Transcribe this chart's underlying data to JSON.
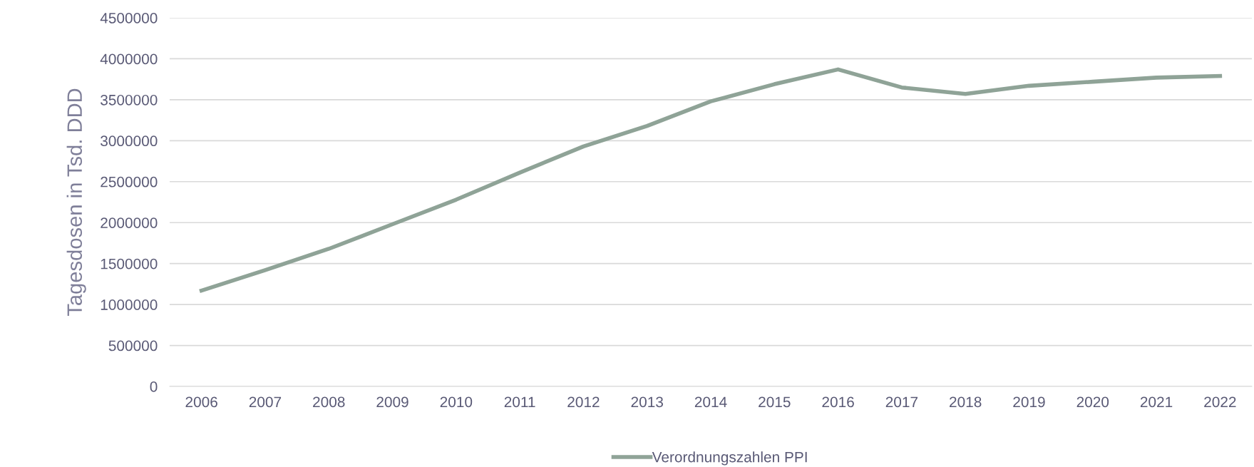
{
  "chart_data": {
    "type": "line",
    "ylabel": "Tagesdosen in Tsd. DDD",
    "categories": [
      "2006",
      "2007",
      "2008",
      "2009",
      "2010",
      "2011",
      "2012",
      "2013",
      "2014",
      "2015",
      "2016",
      "2017",
      "2018",
      "2019",
      "2020",
      "2021",
      "2022"
    ],
    "series": [
      {
        "name": "Verordnungszahlen PPI",
        "color": "#8fa397",
        "values": [
          1170000,
          1420000,
          1680000,
          1980000,
          2280000,
          2610000,
          2930000,
          3180000,
          3480000,
          3690000,
          3870000,
          3650000,
          3570000,
          3670000,
          3720000,
          3770000,
          3790000
        ]
      }
    ],
    "ylim": [
      0,
      4500000
    ],
    "yticks": [
      0,
      500000,
      1000000,
      1500000,
      2000000,
      2500000,
      3000000,
      3500000,
      4000000,
      4500000
    ],
    "grid": "y",
    "legend": "bottom",
    "marker": "none",
    "line_style": "solid"
  }
}
